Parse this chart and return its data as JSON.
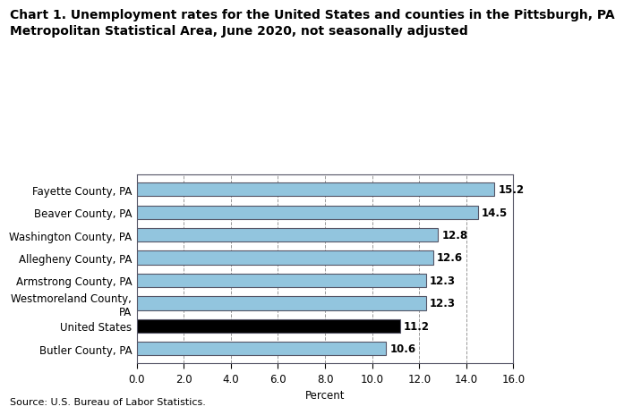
{
  "title_line1": "Chart 1. Unemployment rates for the United States and counties in the Pittsburgh, PA",
  "title_line2": "Metropolitan Statistical Area, June 2020, not seasonally adjusted",
  "categories": [
    "Butler County, PA",
    "United States",
    "Westmoreland County,\nPA",
    "Armstrong County, PA",
    "Allegheny County, PA",
    "Washington County, PA",
    "Beaver County, PA",
    "Fayette County, PA"
  ],
  "values": [
    10.6,
    11.2,
    12.3,
    12.3,
    12.6,
    12.8,
    14.5,
    15.2
  ],
  "value_labels": [
    "10.6",
    "11.2",
    "12.3",
    "12.3",
    "12.6",
    "12.8",
    "14.5",
    "15.2"
  ],
  "bar_colors": [
    "#92C5DE",
    "#000000",
    "#92C5DE",
    "#92C5DE",
    "#92C5DE",
    "#92C5DE",
    "#92C5DE",
    "#92C5DE"
  ],
  "bar_edge_color": "#555566",
  "xlabel": "Percent",
  "xlim": [
    0,
    16.0
  ],
  "xticks": [
    0.0,
    2.0,
    4.0,
    6.0,
    8.0,
    10.0,
    12.0,
    14.0,
    16.0
  ],
  "xtick_labels": [
    "0.0",
    "2.0",
    "4.0",
    "6.0",
    "8.0",
    "10.0",
    "12.0",
    "14.0",
    "16.0"
  ],
  "source": "Source: U.S. Bureau of Labor Statistics.",
  "title_fontsize": 10,
  "label_fontsize": 8.5,
  "tick_fontsize": 8.5,
  "source_fontsize": 8,
  "value_label_fontsize": 8.5,
  "background_color": "#ffffff",
  "grid_color": "#999999",
  "bar_height": 0.6,
  "bar_linewidth": 0.8
}
